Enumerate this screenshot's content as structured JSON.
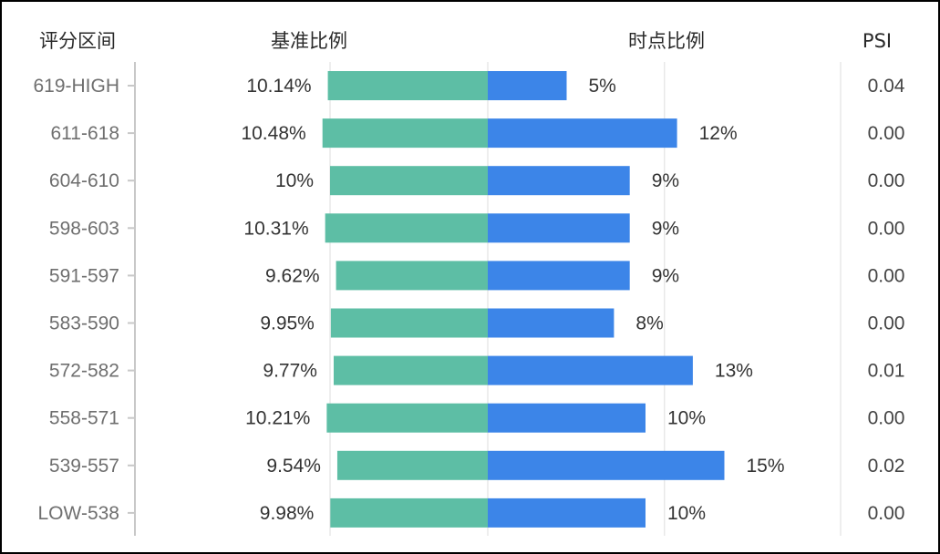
{
  "colors": {
    "base_bar": "#5dbea5",
    "current_bar": "#3c85e8",
    "axis_line": "#c8c8c8",
    "grid_line": "#e3e3e3"
  },
  "chart_data": {
    "type": "bar",
    "orientation": "horizontal-butterfly",
    "headers": {
      "category": "评分区间",
      "base": "基准比例",
      "current": "时点比例",
      "psi": "PSI"
    },
    "categories": [
      "619-HIGH",
      "611-618",
      "604-610",
      "598-603",
      "591-597",
      "583-590",
      "572-582",
      "558-571",
      "539-557",
      "LOW-538"
    ],
    "series": [
      {
        "name": "基准比例",
        "values": [
          10.14,
          10.48,
          10,
          10.31,
          9.62,
          9.95,
          9.77,
          10.21,
          9.54,
          9.98
        ],
        "labels": [
          "10.14%",
          "10.48%",
          "10%",
          "10.31%",
          "9.62%",
          "9.95%",
          "9.77%",
          "10.21%",
          "9.54%",
          "9.98%"
        ]
      },
      {
        "name": "时点比例",
        "values": [
          5,
          12,
          9,
          9,
          9,
          8,
          13,
          10,
          15,
          10
        ],
        "labels": [
          "5%",
          "12%",
          "9%",
          "9%",
          "9%",
          "8%",
          "13%",
          "10%",
          "15%",
          "10%"
        ]
      }
    ],
    "psi": [
      "0.04",
      "0.00",
      "0.00",
      "0.00",
      "0.00",
      "0.00",
      "0.01",
      "0.00",
      "0.02",
      "0.00"
    ],
    "value_unit": "%",
    "xlim": [
      0,
      20
    ],
    "grid": "vertical"
  }
}
